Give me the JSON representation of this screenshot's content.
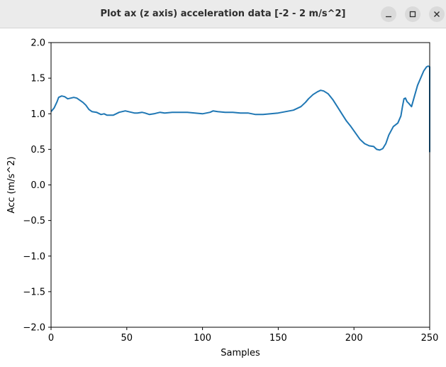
{
  "window": {
    "title": "Plot ax (z axis) acceleration data [-2 - 2 m/s^2]",
    "controls": {
      "minimize_icon": "minimize-icon",
      "maximize_icon": "maximize-icon",
      "close_icon": "close-icon"
    }
  },
  "chart_data": {
    "type": "line",
    "title": "",
    "xlabel": "Samples",
    "ylabel": "Acc (m/s^2)",
    "xlim": [
      0,
      250
    ],
    "ylim": [
      -2.0,
      2.0
    ],
    "xticks": [
      0,
      50,
      100,
      150,
      200,
      250
    ],
    "yticks": [
      -2.0,
      -1.5,
      -1.0,
      -0.5,
      0.0,
      0.5,
      1.0,
      1.5,
      2.0
    ],
    "xtick_labels": [
      "0",
      "50",
      "100",
      "150",
      "200",
      "250"
    ],
    "ytick_labels": [
      "−2.0",
      "−1.5",
      "−1.0",
      "−0.5",
      "0.0",
      "0.5",
      "1.0",
      "1.5",
      "2.0"
    ],
    "grid": false,
    "legend": false,
    "line_color": "#1f77b4",
    "series": [
      {
        "x": [
          0,
          2,
          4,
          5,
          7,
          9,
          11,
          13,
          15,
          17,
          19,
          21,
          23,
          25,
          27,
          30,
          33,
          35,
          37,
          39,
          41,
          43,
          45,
          47,
          49,
          51,
          53,
          55,
          57,
          60,
          62,
          65,
          68,
          70,
          72,
          75,
          80,
          85,
          90,
          95,
          100,
          105,
          107,
          110,
          115,
          120,
          125,
          130,
          135,
          140,
          145,
          150,
          155,
          160,
          163,
          165,
          168,
          170,
          173,
          176,
          178,
          180,
          183,
          186,
          189,
          192,
          195,
          198,
          201,
          204,
          207,
          210,
          213,
          215,
          217,
          219,
          221,
          223,
          226,
          229,
          231,
          232,
          233,
          234,
          235,
          236,
          238,
          240,
          242,
          244,
          246,
          248,
          249,
          250,
          250
        ],
        "y": [
          1.03,
          1.08,
          1.17,
          1.23,
          1.25,
          1.24,
          1.21,
          1.22,
          1.23,
          1.22,
          1.19,
          1.16,
          1.12,
          1.06,
          1.03,
          1.02,
          0.99,
          1.0,
          0.98,
          0.98,
          0.98,
          1.0,
          1.02,
          1.03,
          1.04,
          1.03,
          1.02,
          1.01,
          1.01,
          1.02,
          1.01,
          0.99,
          1.0,
          1.01,
          1.02,
          1.01,
          1.02,
          1.02,
          1.02,
          1.01,
          1.0,
          1.02,
          1.04,
          1.03,
          1.02,
          1.02,
          1.01,
          1.01,
          0.99,
          0.99,
          1.0,
          1.01,
          1.03,
          1.05,
          1.08,
          1.1,
          1.16,
          1.21,
          1.27,
          1.31,
          1.33,
          1.32,
          1.28,
          1.2,
          1.1,
          1.0,
          0.9,
          0.82,
          0.73,
          0.64,
          0.58,
          0.55,
          0.54,
          0.5,
          0.49,
          0.51,
          0.58,
          0.7,
          0.82,
          0.87,
          0.97,
          1.1,
          1.21,
          1.22,
          1.17,
          1.15,
          1.1,
          1.25,
          1.4,
          1.5,
          1.6,
          1.66,
          1.67,
          1.66,
          0.46
        ]
      }
    ]
  }
}
